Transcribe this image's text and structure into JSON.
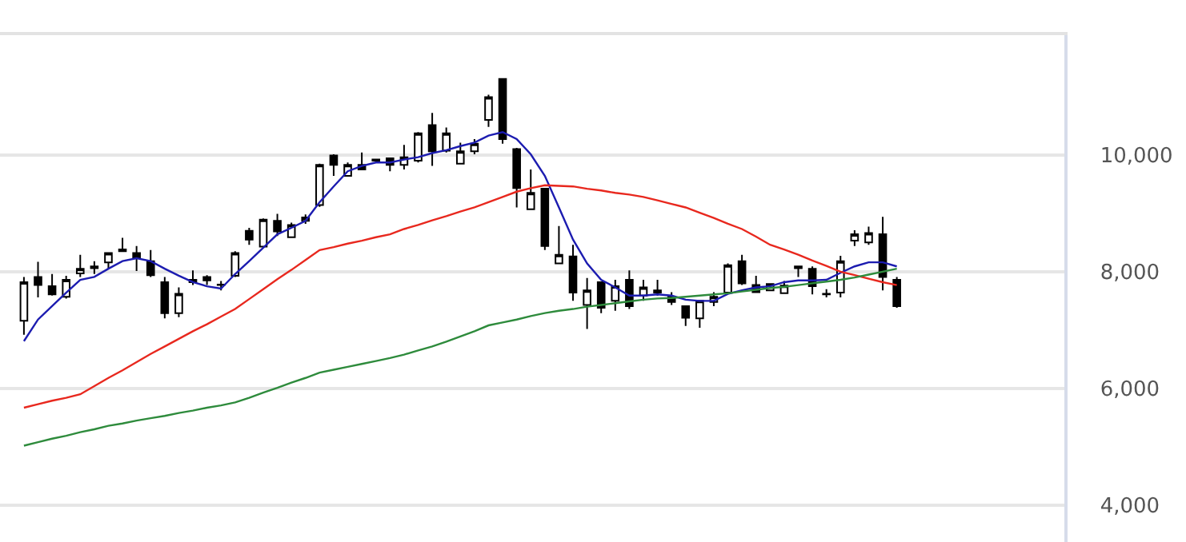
{
  "chart_data": {
    "type": "candlestick",
    "categories": [
      null,
      null,
      null,
      null,
      null,
      null,
      null,
      null,
      null,
      null,
      null,
      null,
      null,
      null,
      null,
      null,
      null,
      null,
      null,
      null,
      null,
      null,
      null,
      null,
      null,
      null,
      null,
      null,
      null,
      null,
      null,
      null,
      null,
      null,
      null,
      null,
      null,
      null,
      null,
      null,
      null,
      null,
      null,
      null,
      null,
      null,
      null,
      null,
      null,
      null,
      null,
      null,
      null,
      null,
      null,
      null,
      null,
      null,
      null,
      null,
      null,
      null,
      null
    ],
    "ohlc": [
      [
        7160,
        7910,
        6920,
        7820
      ],
      [
        7910,
        8170,
        7560,
        7770
      ],
      [
        7750,
        7960,
        7590,
        7610
      ],
      [
        7570,
        7930,
        7540,
        7860
      ],
      [
        7970,
        8290,
        7910,
        8050
      ],
      [
        8060,
        8180,
        7960,
        8090
      ],
      [
        8160,
        8320,
        8050,
        8320
      ],
      [
        8380,
        8580,
        8350,
        8350
      ],
      [
        8320,
        8440,
        8010,
        8230
      ],
      [
        8180,
        8370,
        7910,
        7940
      ],
      [
        7820,
        7910,
        7200,
        7290
      ],
      [
        7290,
        7730,
        7220,
        7620
      ],
      [
        7860,
        8020,
        7770,
        7820
      ],
      [
        7910,
        7940,
        7770,
        7850
      ],
      [
        7770,
        7840,
        7680,
        7780
      ],
      [
        7930,
        8350,
        7910,
        8320
      ],
      [
        8700,
        8750,
        8460,
        8550
      ],
      [
        8430,
        8910,
        8410,
        8890
      ],
      [
        8870,
        8990,
        8610,
        8690
      ],
      [
        8590,
        8840,
        8580,
        8800
      ],
      [
        8870,
        8980,
        8820,
        8930
      ],
      [
        9140,
        9850,
        9110,
        9830
      ],
      [
        9990,
        10010,
        9640,
        9830
      ],
      [
        9640,
        9870,
        9640,
        9830
      ],
      [
        9830,
        10040,
        9740,
        9750
      ],
      [
        9900,
        9920,
        9900,
        9920
      ],
      [
        9940,
        9950,
        9720,
        9830
      ],
      [
        9830,
        10170,
        9750,
        9960
      ],
      [
        9900,
        10390,
        9870,
        10370
      ],
      [
        10510,
        10720,
        9810,
        10060
      ],
      [
        10070,
        10470,
        10040,
        10370
      ],
      [
        9850,
        10210,
        9850,
        10060
      ],
      [
        10060,
        10270,
        10010,
        10190
      ],
      [
        10600,
        11030,
        10480,
        10990
      ],
      [
        11300,
        11310,
        10190,
        10270
      ],
      [
        10100,
        10120,
        9100,
        9430
      ],
      [
        9070,
        9750,
        9070,
        9350
      ],
      [
        9420,
        9420,
        8370,
        8440
      ],
      [
        8140,
        8780,
        8140,
        8290
      ],
      [
        8260,
        8460,
        7500,
        7640
      ],
      [
        7430,
        7890,
        7020,
        7680
      ],
      [
        7820,
        7820,
        7290,
        7380
      ],
      [
        7500,
        7860,
        7330,
        7750
      ],
      [
        7860,
        8020,
        7360,
        7410
      ],
      [
        7590,
        7860,
        7500,
        7730
      ],
      [
        7680,
        7860,
        7590,
        7640
      ],
      [
        7570,
        7650,
        7430,
        7480
      ],
      [
        7410,
        7410,
        7070,
        7210
      ],
      [
        7200,
        7500,
        7040,
        7500
      ],
      [
        7480,
        7650,
        7410,
        7570
      ],
      [
        7640,
        8140,
        7640,
        8110
      ],
      [
        8180,
        8290,
        7770,
        7800
      ],
      [
        7770,
        7930,
        7650,
        7650
      ],
      [
        7680,
        7790,
        7680,
        7790
      ],
      [
        7630,
        7840,
        7630,
        7760
      ],
      [
        8090,
        8090,
        7910,
        8060
      ],
      [
        8050,
        8090,
        7610,
        7750
      ],
      [
        7620,
        7700,
        7560,
        7610
      ],
      [
        7640,
        8270,
        7560,
        8180
      ],
      [
        8530,
        8710,
        8440,
        8640
      ],
      [
        8500,
        8770,
        8460,
        8660
      ],
      [
        8640,
        8940,
        7680,
        7910
      ],
      [
        7860,
        7910,
        7380,
        7410
      ]
    ],
    "series": [
      {
        "type": "line",
        "color": "#1c1cb0",
        "values": [
          6810,
          7180,
          7410,
          7640,
          7860,
          7910,
          8050,
          8180,
          8230,
          8180,
          8050,
          7930,
          7820,
          7750,
          7710,
          7960,
          8180,
          8410,
          8640,
          8750,
          8870,
          9190,
          9460,
          9720,
          9810,
          9870,
          9870,
          9920,
          9960,
          10030,
          10080,
          10150,
          10210,
          10330,
          10390,
          10270,
          10010,
          9640,
          9100,
          8550,
          8140,
          7860,
          7730,
          7590,
          7590,
          7610,
          7590,
          7520,
          7500,
          7500,
          7620,
          7680,
          7730,
          7750,
          7820,
          7850,
          7850,
          7860,
          7980,
          8090,
          8160,
          8160,
          8090
        ]
      },
      {
        "type": "line",
        "color": "#e8281e",
        "values": [
          5670,
          5730,
          5790,
          5840,
          5900,
          6040,
          6180,
          6310,
          6450,
          6590,
          6720,
          6850,
          6980,
          7100,
          7230,
          7360,
          7530,
          7700,
          7870,
          8030,
          8200,
          8370,
          8420,
          8480,
          8530,
          8590,
          8640,
          8730,
          8800,
          8880,
          8950,
          9030,
          9100,
          9190,
          9280,
          9370,
          9430,
          9480,
          9470,
          9460,
          9420,
          9390,
          9350,
          9320,
          9280,
          9220,
          9160,
          9100,
          9010,
          8920,
          8820,
          8730,
          8600,
          8460,
          8380,
          8290,
          8190,
          8100,
          8000,
          7940,
          7880,
          7820,
          7770
        ]
      },
      {
        "type": "line",
        "color": "#2e8b3c",
        "values": [
          5020,
          5080,
          5140,
          5190,
          5250,
          5300,
          5360,
          5400,
          5450,
          5490,
          5530,
          5580,
          5620,
          5670,
          5710,
          5760,
          5840,
          5930,
          6010,
          6100,
          6180,
          6270,
          6320,
          6370,
          6420,
          6470,
          6520,
          6580,
          6650,
          6720,
          6800,
          6890,
          6980,
          7080,
          7130,
          7180,
          7240,
          7290,
          7330,
          7360,
          7400,
          7430,
          7460,
          7490,
          7520,
          7540,
          7550,
          7570,
          7590,
          7610,
          7630,
          7660,
          7690,
          7720,
          7740,
          7770,
          7800,
          7830,
          7860,
          7900,
          7950,
          8000,
          8050
        ]
      }
    ],
    "ylim": [
      3370,
      12050
    ],
    "yticks": [
      {
        "value": 4000,
        "label": "4,000"
      },
      {
        "value": 6000,
        "label": "6,000"
      },
      {
        "value": 8000,
        "label": "8,000"
      },
      {
        "value": 10000,
        "label": "10,000"
      }
    ],
    "grid": "y",
    "tick_labels": "y"
  }
}
